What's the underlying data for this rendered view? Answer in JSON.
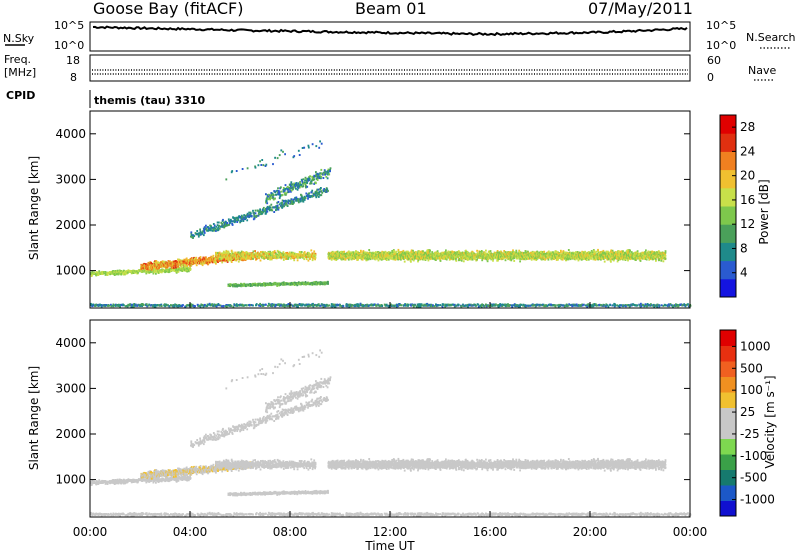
{
  "header": {
    "station": "Goose Bay (fitACF)",
    "beam": "Beam 01",
    "date": "07/May/2011"
  },
  "noise_panel": {
    "left_label": "N.Sky",
    "left_ticks": [
      "10^5",
      "10^0"
    ],
    "right_ticks": [
      "10^5",
      "10^0"
    ],
    "right_label": "N.Search",
    "profile": [
      0.88,
      0.85,
      0.82,
      0.8,
      0.77,
      0.74,
      0.72,
      0.7,
      0.68,
      0.66,
      0.64,
      0.62,
      0.6,
      0.6,
      0.62,
      0.64,
      0.66,
      0.7,
      0.76,
      0.82
    ]
  },
  "freq_panel": {
    "left_label_1": "Freq.",
    "left_label_2": "[MHz]",
    "left_ticks": [
      "18",
      "8"
    ],
    "right_ticks": [
      "60",
      "0"
    ],
    "right_label": "Nave"
  },
  "cpid_panel": {
    "left_label": "CPID",
    "program": "themis (tau) 3310"
  },
  "chart_data": [
    {
      "type": "heatmap",
      "title": "",
      "ylabel": "Slant Range [km]",
      "y_ticks": [
        "1000",
        "2000",
        "3000",
        "4000"
      ],
      "y_range": [
        180,
        4500
      ],
      "x_range": [
        0,
        24
      ],
      "colorbar": {
        "label": "Power [dB]",
        "ticks": [
          "4",
          "8",
          "12",
          "16",
          "20",
          "24",
          "28"
        ],
        "colors": [
          "#1414e0",
          "#2a5bd0",
          "#1f8a8a",
          "#4aa05a",
          "#7ec84c",
          "#c8e04a",
          "#f0c030",
          "#f08020",
          "#e03010",
          "#e00000"
        ],
        "value_range": [
          0,
          30
        ]
      }
    },
    {
      "type": "heatmap",
      "title": "",
      "ylabel": "Slant Range [km]",
      "xlabel": "Time UT",
      "y_ticks": [
        "1000",
        "2000",
        "3000",
        "4000"
      ],
      "y_range": [
        180,
        4500
      ],
      "x_range": [
        0,
        24
      ],
      "x_ticks": [
        "00:00",
        "04:00",
        "08:00",
        "12:00",
        "16:00",
        "20:00",
        "00:00"
      ],
      "colorbar": {
        "label": "Velocity [m s⁻¹]",
        "ticks": [
          "1000",
          "500",
          "100",
          "25",
          "-25",
          "-100",
          "-500",
          "-1000"
        ],
        "colors": [
          "#1010d0",
          "#1c58c8",
          "#167a6e",
          "#3aa048",
          "#7ed850",
          "#c8c8c8",
          "#c8c8c8",
          "#f0c030",
          "#f09020",
          "#f06020",
          "#e83010",
          "#e00000"
        ],
        "value_range": [
          -1200,
          1200
        ]
      }
    }
  ]
}
